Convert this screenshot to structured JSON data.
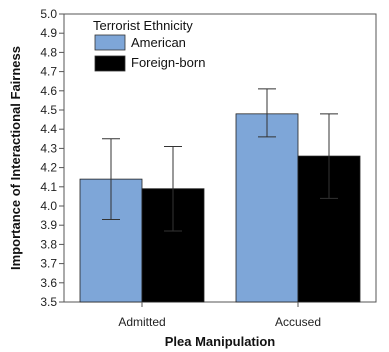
{
  "chart_data": {
    "type": "bar",
    "title": "",
    "xlabel": "Plea Manipulation",
    "ylabel": "Importance of Interactional Fairness",
    "categories": [
      "Admitted",
      "Accused"
    ],
    "ylim": [
      3.5,
      5.0
    ],
    "yticks": [
      "3.5",
      "3.6",
      "3.7",
      "3.8",
      "3.9",
      "4.0",
      "4.1",
      "4.2",
      "4.3",
      "4.4",
      "4.5",
      "4.6",
      "4.7",
      "4.8",
      "4.9",
      "5.0"
    ],
    "grid": false,
    "legend": {
      "title": "Terrorist Ethnicity",
      "position": "top-left"
    },
    "series": [
      {
        "name": "American",
        "color": "#7ea6d8",
        "values": [
          4.14,
          4.48
        ],
        "error_low": [
          3.93,
          4.36
        ],
        "error_high": [
          4.35,
          4.61
        ]
      },
      {
        "name": "Foreign-born",
        "color": "#000000",
        "values": [
          4.09,
          4.26
        ],
        "error_low": [
          3.87,
          4.04
        ],
        "error_high": [
          4.31,
          4.48
        ]
      }
    ]
  }
}
